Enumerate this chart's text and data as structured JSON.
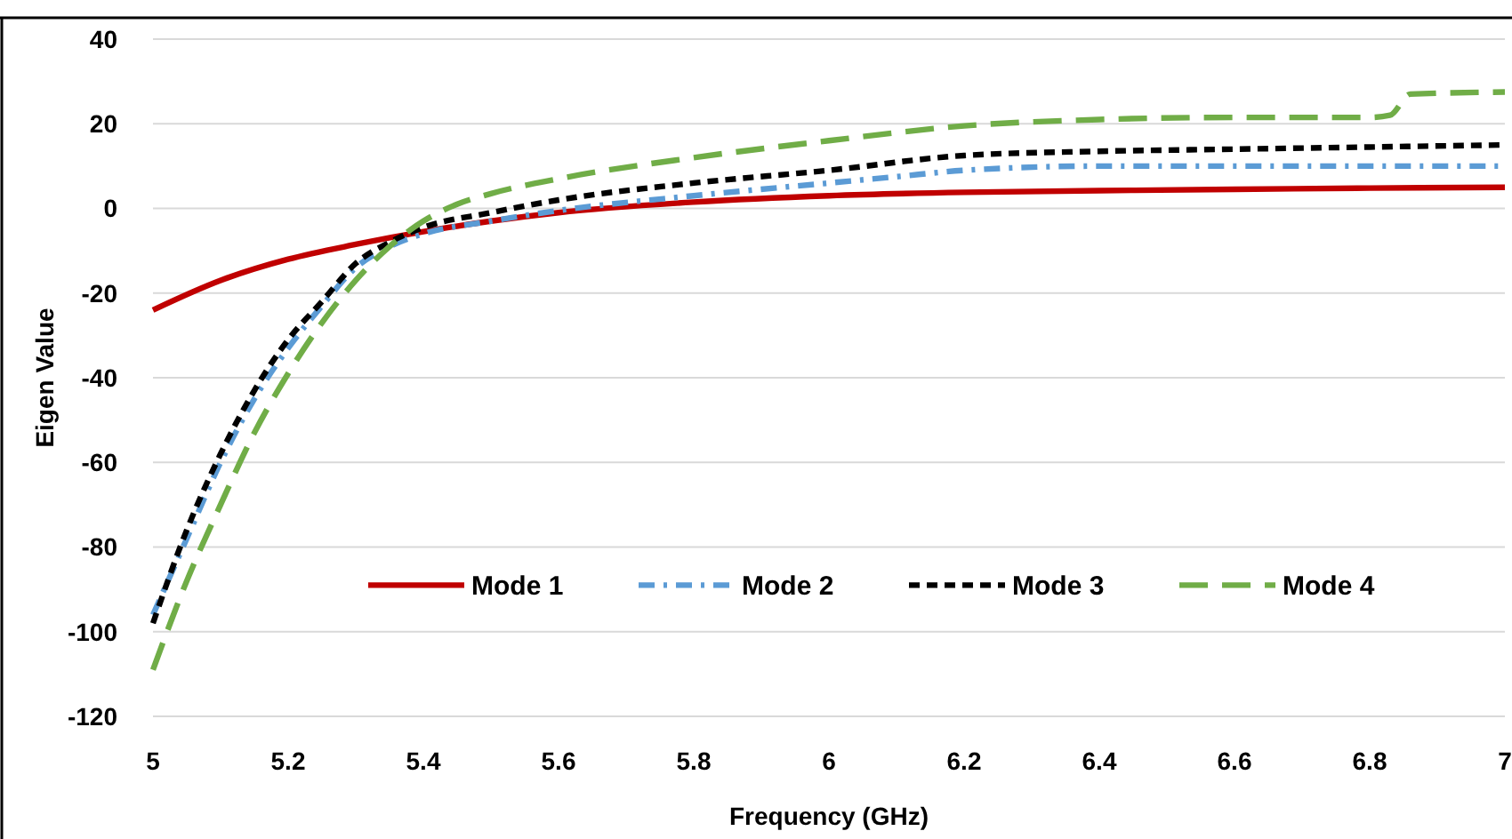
{
  "chart_data": {
    "type": "line",
    "xlabel": "Frequency (GHz)",
    "ylabel": "Eigen Value",
    "xlim": [
      5,
      7
    ],
    "xticks": [
      5,
      5.2,
      5.4,
      5.6,
      5.8,
      6,
      6.2,
      6.4,
      6.6,
      6.8,
      7
    ],
    "ylim": [
      -120,
      40
    ],
    "yticks": [
      -120,
      -100,
      -80,
      -60,
      -40,
      -20,
      0,
      20,
      40
    ],
    "grid": "y",
    "legend": "bottom",
    "series": [
      {
        "name": "Mode 1",
        "color": "#c00000",
        "line_style": "solid",
        "x": [
          5,
          5.1,
          5.2,
          5.3,
          5.4,
          5.5,
          5.6,
          5.8,
          6,
          6.2,
          6.4,
          6.6,
          6.8,
          7
        ],
        "values": [
          -24,
          -17,
          -12,
          -8.5,
          -5.5,
          -3,
          -1,
          1.5,
          3,
          3.8,
          4.2,
          4.5,
          4.8,
          5
        ]
      },
      {
        "name": "Mode 2",
        "color": "#5b9bd5",
        "line_style": "dashed",
        "x": [
          5,
          5.05,
          5.1,
          5.15,
          5.2,
          5.25,
          5.3,
          5.35,
          5.4,
          5.5,
          5.6,
          5.8,
          6,
          6.1,
          6.2,
          6.4,
          6.6,
          6.8,
          7
        ],
        "values": [
          -96,
          -78,
          -60,
          -45,
          -33,
          -23,
          -14,
          -9,
          -6,
          -3,
          -0.5,
          3,
          6,
          7.5,
          9,
          10,
          10,
          10,
          10
        ]
      },
      {
        "name": "Mode 3",
        "color": "#000000",
        "line_style": "dashed",
        "x": [
          5,
          5.05,
          5.1,
          5.15,
          5.2,
          5.25,
          5.3,
          5.35,
          5.4,
          5.5,
          5.6,
          5.8,
          6,
          6.2,
          6.4,
          6.6,
          6.8,
          7
        ],
        "values": [
          -98,
          -76,
          -58,
          -43,
          -31,
          -22,
          -13,
          -8,
          -4.5,
          -1,
          2,
          6,
          9,
          12.5,
          13.5,
          14,
          14.5,
          15
        ]
      },
      {
        "name": "Mode 4",
        "color": "#70ad47",
        "line_style": "dashed",
        "x": [
          5,
          5.05,
          5.1,
          5.15,
          5.2,
          5.25,
          5.3,
          5.35,
          5.4,
          5.45,
          5.5,
          5.6,
          5.8,
          6,
          6.2,
          6.4,
          6.6,
          6.8,
          6.83,
          6.86,
          7
        ],
        "values": [
          -109,
          -88,
          -70,
          -53,
          -39,
          -27,
          -17,
          -9,
          -3,
          1,
          3.5,
          7,
          12,
          16,
          19.5,
          21,
          21.5,
          21.5,
          22,
          27,
          27.5
        ]
      }
    ]
  }
}
